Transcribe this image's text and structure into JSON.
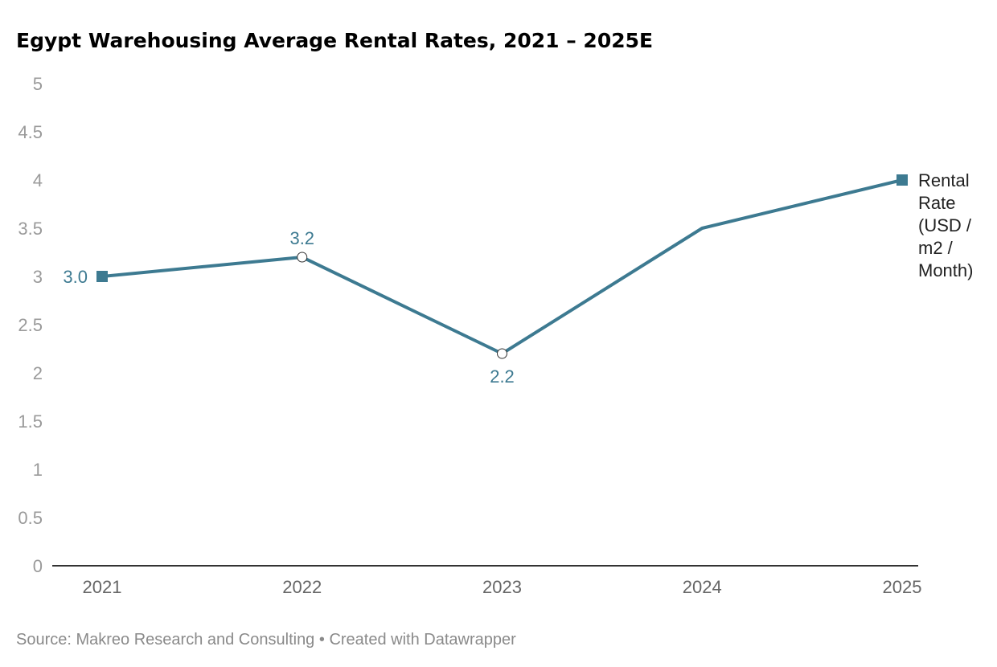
{
  "title": "Egypt Warehousing Average Rental Rates, 2021 – 2025E",
  "footer": {
    "source": "Source: Makreo Research and Consulting",
    "separator": "•",
    "credit": "Created with Datawrapper"
  },
  "colors": {
    "series": "#3d7a91",
    "axis_text": "#9a9a9a",
    "x_text": "#666666",
    "axis_line": "#333333"
  },
  "chart_data": {
    "type": "line",
    "title": "Egypt Warehousing Average Rental Rates, 2021 – 2025E",
    "x": [
      "2021",
      "2022",
      "2023",
      "2024",
      "2025"
    ],
    "ylim": [
      0,
      5
    ],
    "yticks": [
      "0",
      "0.5",
      "1",
      "1.5",
      "2",
      "2.5",
      "3",
      "3.5",
      "4",
      "4.5",
      "5"
    ],
    "grid": false,
    "series": [
      {
        "name": "Rental Rate (USD / m2 / Month)",
        "name_lines": [
          "Rental",
          "Rate",
          "(USD /",
          "m2 /",
          "Month)"
        ],
        "values": [
          3.0,
          3.2,
          2.2,
          3.5,
          4.0
        ]
      }
    ],
    "data_labels": [
      "3.0",
      "3.2",
      "2.2",
      "",
      ""
    ],
    "legend": "right-end-label"
  }
}
